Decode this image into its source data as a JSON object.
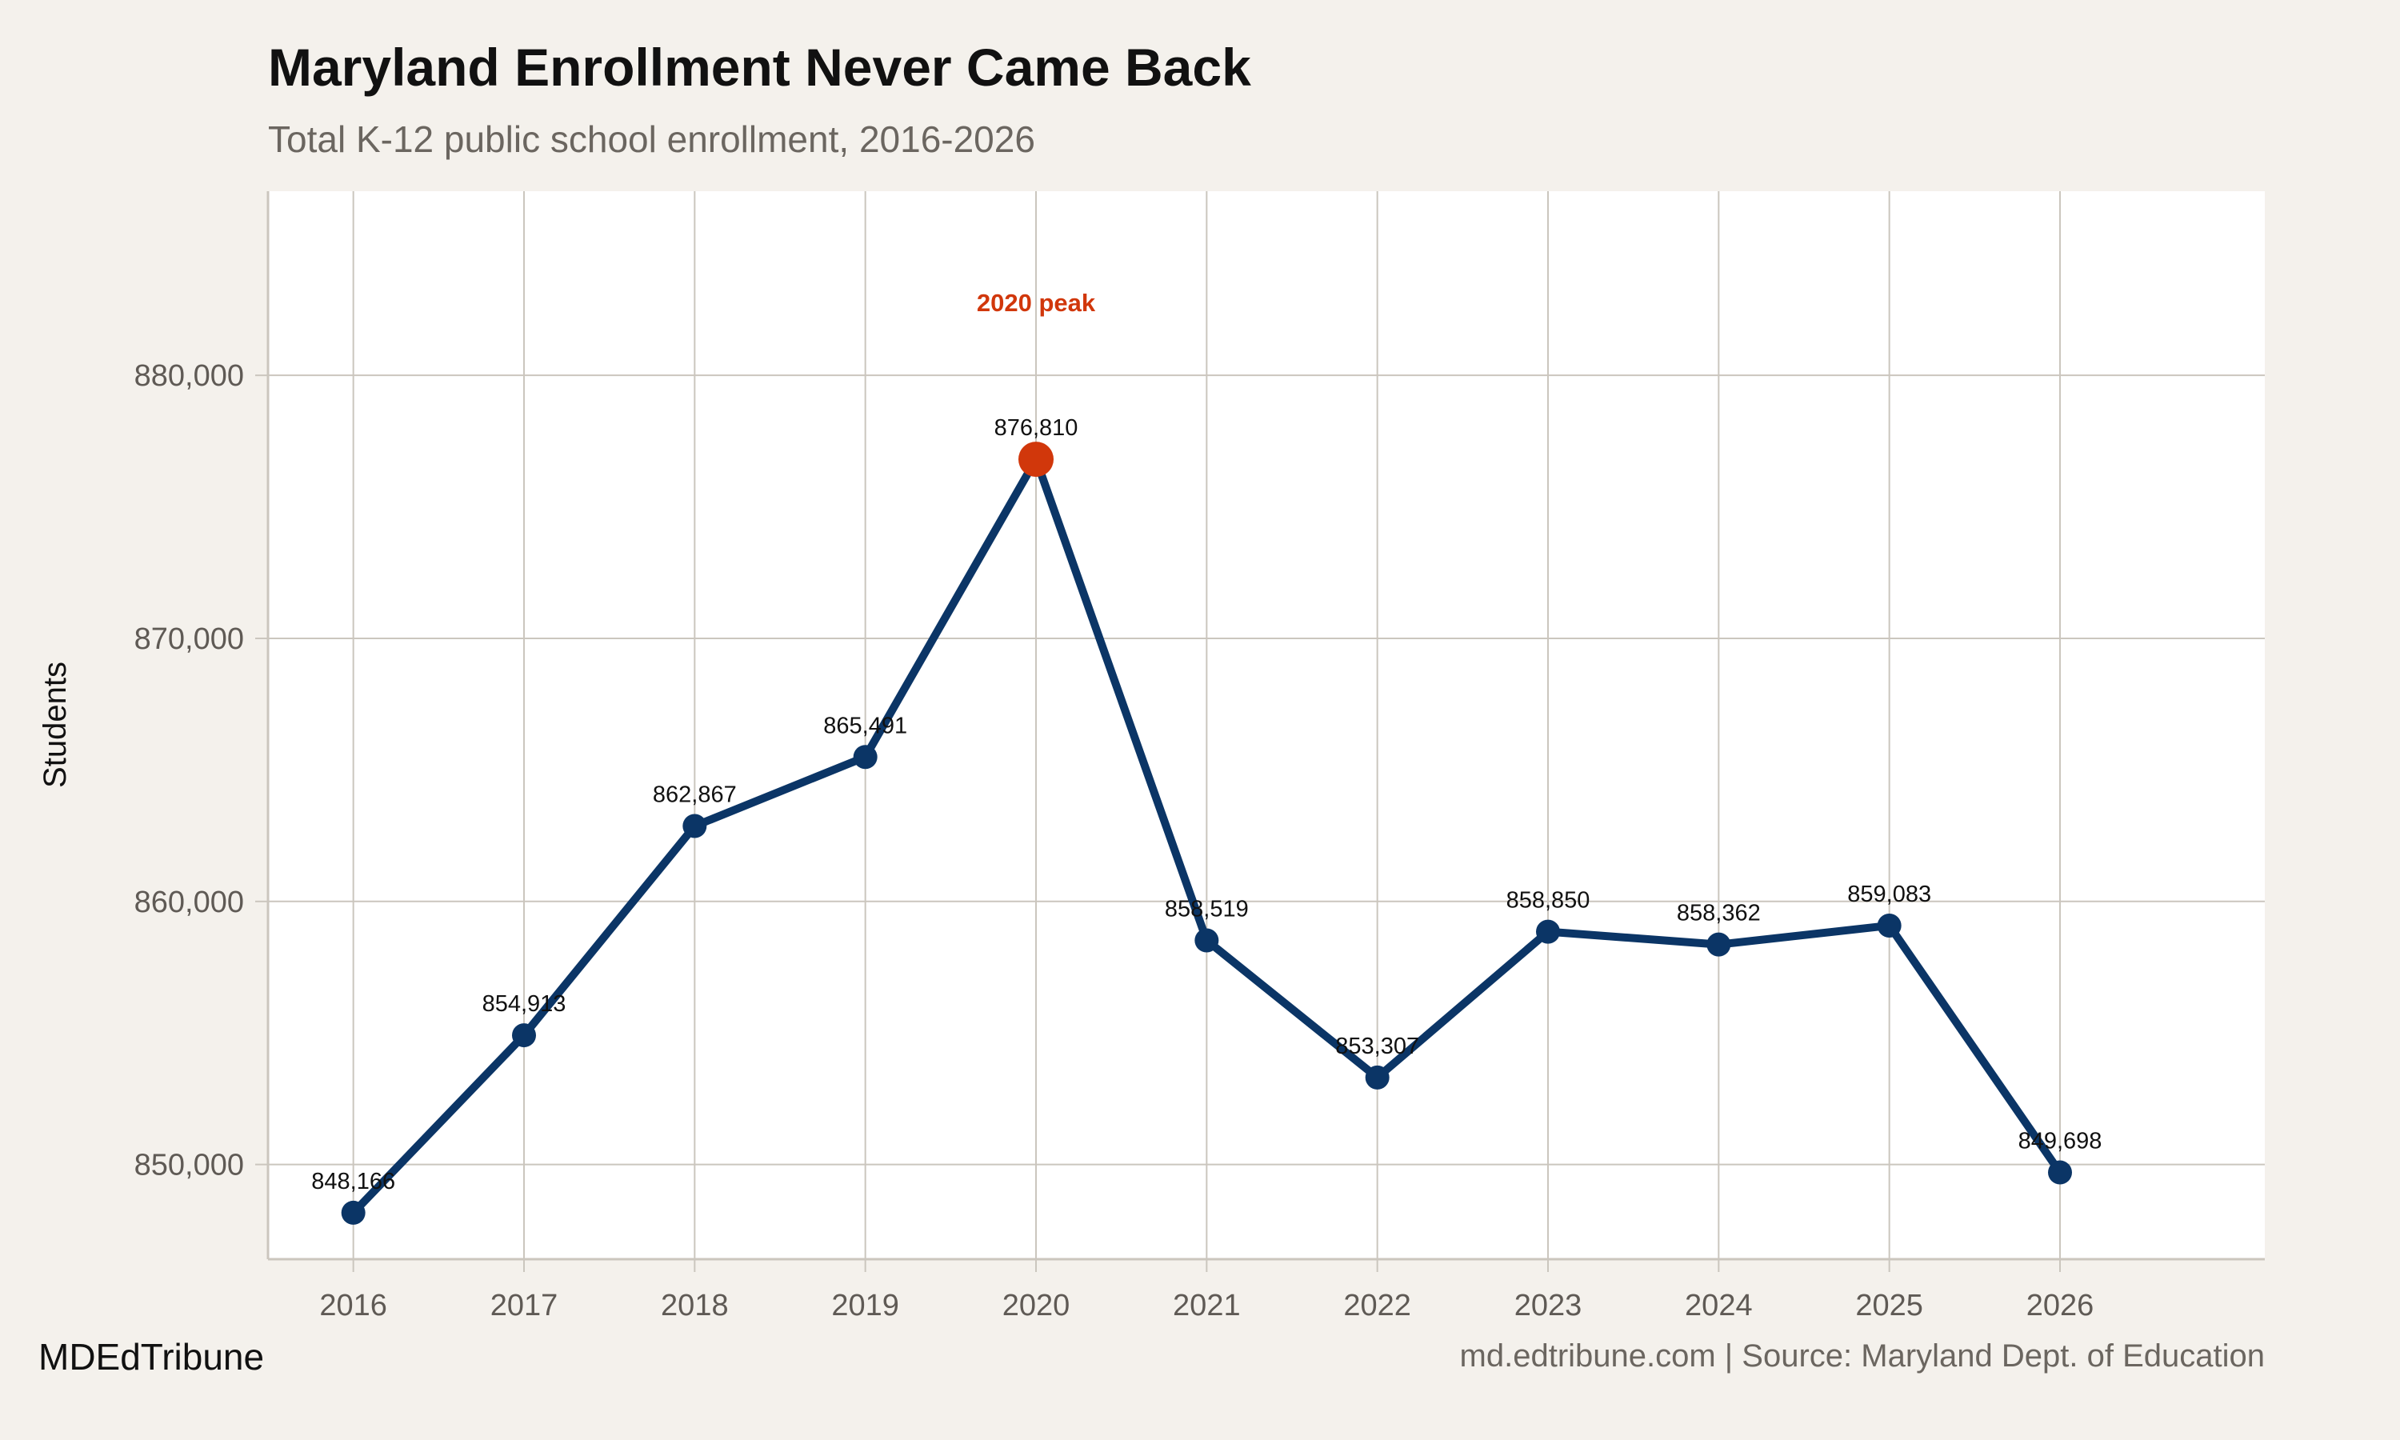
{
  "chart_data": {
    "type": "line",
    "title": "Maryland Enrollment Never Came Back",
    "subtitle": "Total K-12 public school enrollment, 2016-2026",
    "xlabel": "",
    "ylabel": "Students",
    "x": [
      2016,
      2017,
      2018,
      2019,
      2020,
      2021,
      2022,
      2023,
      2024,
      2025,
      2026
    ],
    "x_tick_labels": [
      "2016",
      "2017",
      "2018",
      "2019",
      "2020",
      "2021",
      "2022",
      "2023",
      "2024",
      "2025",
      "2026"
    ],
    "values": [
      848166,
      854913,
      862867,
      865491,
      876810,
      858519,
      853307,
      858850,
      858362,
      859083,
      849698
    ],
    "data_labels": [
      "848,166",
      "854,913",
      "862,867",
      "865,491",
      "876,810",
      "858,519",
      "853,307",
      "858,850",
      "858,362",
      "859,083",
      "849,698"
    ],
    "y_ticks": [
      850000,
      860000,
      870000,
      880000
    ],
    "y_tick_labels": [
      "850,000",
      "860,000",
      "870,000",
      "880,000"
    ],
    "xlim": [
      2015.5,
      2027.2
    ],
    "ylim": [
      846400,
      887000
    ],
    "grid": true,
    "highlight": {
      "x": 2020,
      "annotation": "2020 peak"
    },
    "colors": {
      "line": "#0b3566",
      "highlight": "#d1370b",
      "background": "#f4f1ec",
      "panel": "#ffffff",
      "grid": "#cbc6be"
    }
  },
  "footer": {
    "brand": "MDEdTribune",
    "source": "md.edtribune.com | Source: Maryland Dept. of Education"
  }
}
